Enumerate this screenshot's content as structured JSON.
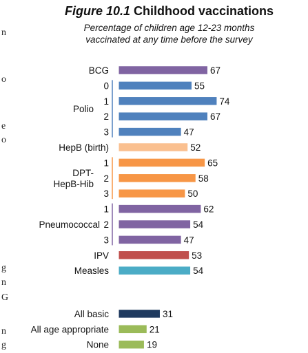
{
  "figure": {
    "number": "Figure 10.1",
    "title": "Childhood vaccinations",
    "subtitle_line1": "Percentage of children age 12-23 months",
    "subtitle_line2": "vaccinated at any time before the survey"
  },
  "edge_fragments": [
    "n",
    "o",
    "e",
    "o",
    "g",
    "n",
    "G",
    "n",
    "g"
  ],
  "chart_data": {
    "type": "bar",
    "orientation": "horizontal",
    "title": "Childhood vaccinations",
    "subtitle": "Percentage of children age 12-23 months vaccinated at any time before the survey",
    "xlim": [
      0,
      100
    ],
    "grid": false,
    "groups": [
      {
        "label": "BCG",
        "bars": [
          {
            "label": "",
            "value": 67,
            "color": "#8064a2"
          }
        ]
      },
      {
        "label": "Polio",
        "bars": [
          {
            "label": "0",
            "value": 55,
            "color": "#4f81bd"
          },
          {
            "label": "1",
            "value": 74,
            "color": "#4f81bd"
          },
          {
            "label": "2",
            "value": 67,
            "color": "#4f81bd"
          },
          {
            "label": "3",
            "value": 47,
            "color": "#4f81bd"
          }
        ],
        "bracket_color": "#4f81bd"
      },
      {
        "label": "HepB (birth)",
        "bars": [
          {
            "label": "",
            "value": 52,
            "color": "#fac090"
          }
        ]
      },
      {
        "label": "DPT-\nHepB-Hib",
        "label_lines": [
          "DPT-",
          "HepB-Hib"
        ],
        "bars": [
          {
            "label": "1",
            "value": 65,
            "color": "#f79646"
          },
          {
            "label": "2",
            "value": 58,
            "color": "#f79646"
          },
          {
            "label": "3",
            "value": 50,
            "color": "#f79646"
          }
        ],
        "bracket_color": "#f79646"
      },
      {
        "label": "Pneumococcal",
        "bars": [
          {
            "label": "1",
            "value": 62,
            "color": "#8064a2"
          },
          {
            "label": "2",
            "value": 54,
            "color": "#8064a2"
          },
          {
            "label": "3",
            "value": 47,
            "color": "#8064a2"
          }
        ],
        "bracket_color": "#8064a2"
      },
      {
        "label": "IPV",
        "bars": [
          {
            "label": "",
            "value": 53,
            "color": "#c0504d"
          }
        ]
      },
      {
        "label": "Measles",
        "bars": [
          {
            "label": "",
            "value": 54,
            "color": "#4bacc6"
          }
        ]
      },
      {
        "label": "All basic",
        "bars": [
          {
            "label": "",
            "value": 31,
            "color": "#1f3a5f"
          }
        ],
        "gap_before": true
      },
      {
        "label": "All age appropriate",
        "bars": [
          {
            "label": "",
            "value": 21,
            "color": "#9bbb59"
          }
        ]
      },
      {
        "label": "None",
        "bars": [
          {
            "label": "",
            "value": 19,
            "color": "#9bbb59"
          }
        ]
      }
    ]
  }
}
